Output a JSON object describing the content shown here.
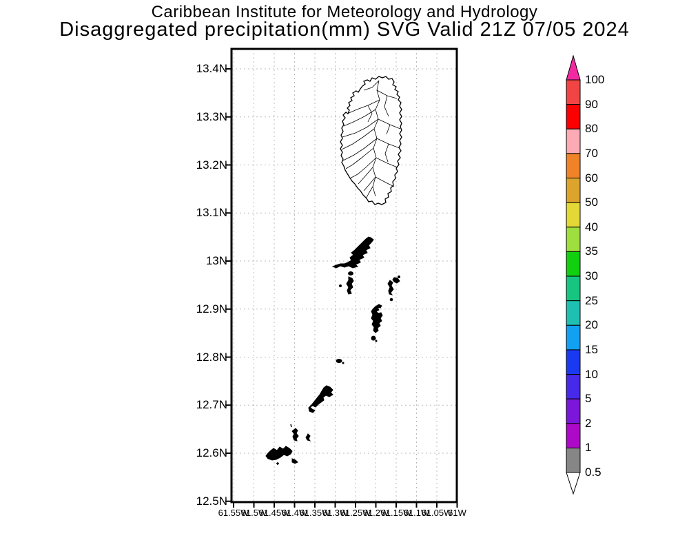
{
  "title": {
    "line1": "Caribbean Institute for Meteorology and Hydrology",
    "line2": "Disaggregated precipitation(mm) SVG Valid 21Z 07/05 2024"
  },
  "axes": {
    "lat_ticks": [
      "13.4N",
      "13.3N",
      "13.2N",
      "13.1N",
      "13N",
      "12.9N",
      "12.8N",
      "12.7N",
      "12.6N",
      "12.5N"
    ],
    "lon_ticks": [
      "61.55W",
      "61.5W",
      "61.45W",
      "61.4W",
      "61.35W",
      "61.3W",
      "61.25W",
      "61.2W",
      "61.15W",
      "61.1W",
      "61.05W",
      "61W"
    ]
  },
  "colorbar": {
    "boundary_labels": [
      "100",
      "90",
      "80",
      "70",
      "60",
      "50",
      "40",
      "35",
      "30",
      "25",
      "20",
      "15",
      "10",
      "5",
      "2",
      "1",
      "0.5"
    ],
    "segment_colors_top_to_bottom": [
      "#f24444",
      "#fa0000",
      "#fcaab4",
      "#f08228",
      "#dca42c",
      "#e4d836",
      "#9ede3e",
      "#10d010",
      "#16c680",
      "#1ec0b2",
      "#12a0f2",
      "#1a3af2",
      "#4629e9",
      "#7c16da",
      "#ae09c9",
      "#868686"
    ],
    "arrow_top_color": "#f22aa2",
    "arrow_bottom_color": "#ffffff",
    "outline_color": "#000000"
  },
  "chart_data": {
    "type": "map",
    "title": "Disaggregated precipitation(mm) SVG Valid 21Z 07/05 2024",
    "subtitle": "Caribbean Institute for Meteorology and Hydrology",
    "lat_axis": {
      "ticks": [
        "13.4N",
        "13.3N",
        "13.2N",
        "13.1N",
        "13N",
        "12.9N",
        "12.8N",
        "12.7N",
        "12.6N",
        "12.5N"
      ],
      "range": [
        "12.5N",
        "13.44N"
      ]
    },
    "lon_axis": {
      "ticks": [
        "61.55W",
        "61.5W",
        "61.45W",
        "61.4W",
        "61.35W",
        "61.3W",
        "61.25W",
        "61.2W",
        "61.15W",
        "61.1W",
        "61.05W",
        "61W"
      ],
      "range": [
        "61.55W",
        "61W"
      ]
    },
    "grid": true,
    "legend_position": "right",
    "legend_units": "mm",
    "legend_levels": [
      0.5,
      1,
      2,
      5,
      10,
      15,
      20,
      25,
      30,
      35,
      40,
      50,
      60,
      70,
      80,
      90,
      100
    ],
    "shaded_values_on_map": "none visible (coastlines and basin outlines only)"
  }
}
